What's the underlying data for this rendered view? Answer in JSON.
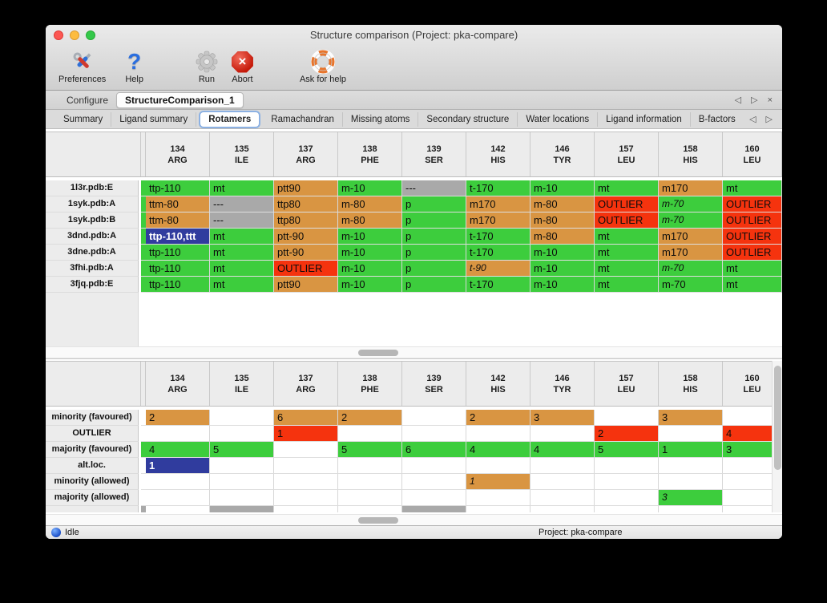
{
  "window": {
    "title": "Structure comparison (Project: pka-compare)"
  },
  "toolbar": {
    "items": [
      {
        "label": "Preferences",
        "icon": "tools-icon"
      },
      {
        "label": "Help",
        "icon": "question-mark-icon"
      },
      {
        "label": "Run",
        "icon": "gear-icon"
      },
      {
        "label": "Abort",
        "icon": "stop-icon"
      },
      {
        "label": "Ask for help",
        "icon": "life-ring-icon"
      }
    ]
  },
  "tabs": {
    "items": [
      {
        "label": "Configure",
        "active": false
      },
      {
        "label": "StructureComparison_1",
        "active": true
      }
    ]
  },
  "tab_controls": {
    "prev": "◁",
    "next": "▷",
    "close": "×"
  },
  "subtabs": {
    "active": "Rotamers",
    "items": [
      "Summary",
      "Ligand summary",
      "Rotamers",
      "Ramachandran",
      "Missing atoms",
      "Secondary structure",
      "Water locations",
      "Ligand information",
      "B-factors"
    ]
  },
  "colors": {
    "green": "#3dcd3d",
    "orange": "#d99542",
    "red": "#f5330e",
    "gray": "#a9a9a9",
    "blue": "#303c9e"
  },
  "columns": [
    {
      "num": "134",
      "res": "ARG"
    },
    {
      "num": "135",
      "res": "ILE"
    },
    {
      "num": "137",
      "res": "ARG"
    },
    {
      "num": "138",
      "res": "PHE"
    },
    {
      "num": "139",
      "res": "SER"
    },
    {
      "num": "142",
      "res": "HIS"
    },
    {
      "num": "146",
      "res": "TYR"
    },
    {
      "num": "157",
      "res": "LEU"
    },
    {
      "num": "158",
      "res": "HIS"
    },
    {
      "num": "160",
      "res": "LEU"
    }
  ],
  "top_table": {
    "rows": [
      {
        "label": "1l3r.pdb:E",
        "sliver": "green",
        "cells": [
          {
            "t": "ttp-110",
            "c": "green"
          },
          {
            "t": "mt",
            "c": "green"
          },
          {
            "t": "ptt90",
            "c": "orange"
          },
          {
            "t": "m-10",
            "c": "green"
          },
          {
            "t": "---",
            "c": "gray"
          },
          {
            "t": "t-170",
            "c": "green"
          },
          {
            "t": "m-10",
            "c": "green"
          },
          {
            "t": "mt",
            "c": "green"
          },
          {
            "t": "m170",
            "c": "orange"
          },
          {
            "t": "mt",
            "c": "green"
          }
        ]
      },
      {
        "label": "1syk.pdb:A",
        "sliver": "green",
        "cells": [
          {
            "t": "ttm-80",
            "c": "orange"
          },
          {
            "t": "---",
            "c": "gray"
          },
          {
            "t": "ttp80",
            "c": "orange"
          },
          {
            "t": "m-80",
            "c": "orange"
          },
          {
            "t": "p",
            "c": "green"
          },
          {
            "t": "m170",
            "c": "orange"
          },
          {
            "t": "m-80",
            "c": "orange"
          },
          {
            "t": "OUTLIER",
            "c": "red"
          },
          {
            "t": "m-70",
            "c": "green",
            "i": true
          },
          {
            "t": "OUTLIER",
            "c": "red"
          }
        ]
      },
      {
        "label": "1syk.pdb:B",
        "sliver": "green",
        "cells": [
          {
            "t": "ttm-80",
            "c": "orange"
          },
          {
            "t": "---",
            "c": "gray"
          },
          {
            "t": "ttp80",
            "c": "orange"
          },
          {
            "t": "m-80",
            "c": "orange"
          },
          {
            "t": "p",
            "c": "green"
          },
          {
            "t": "m170",
            "c": "orange"
          },
          {
            "t": "m-80",
            "c": "orange"
          },
          {
            "t": "OUTLIER",
            "c": "red"
          },
          {
            "t": "m-70",
            "c": "green",
            "i": true
          },
          {
            "t": "OUTLIER",
            "c": "red"
          }
        ]
      },
      {
        "label": "3dnd.pdb:A",
        "sliver": "green",
        "cells": [
          {
            "t": "ttp-110,ttt",
            "c": "blue",
            "sel": true
          },
          {
            "t": "mt",
            "c": "green"
          },
          {
            "t": "ptt-90",
            "c": "orange"
          },
          {
            "t": "m-10",
            "c": "green"
          },
          {
            "t": "p",
            "c": "green"
          },
          {
            "t": "t-170",
            "c": "green"
          },
          {
            "t": "m-80",
            "c": "orange"
          },
          {
            "t": "mt",
            "c": "green"
          },
          {
            "t": "m170",
            "c": "orange"
          },
          {
            "t": "OUTLIER",
            "c": "red"
          }
        ]
      },
      {
        "label": "3dne.pdb:A",
        "sliver": "green",
        "cells": [
          {
            "t": "ttp-110",
            "c": "green"
          },
          {
            "t": "mt",
            "c": "green"
          },
          {
            "t": "ptt-90",
            "c": "orange"
          },
          {
            "t": "m-10",
            "c": "green"
          },
          {
            "t": "p",
            "c": "green"
          },
          {
            "t": "t-170",
            "c": "green"
          },
          {
            "t": "m-10",
            "c": "green"
          },
          {
            "t": "mt",
            "c": "green"
          },
          {
            "t": "m170",
            "c": "orange"
          },
          {
            "t": "OUTLIER",
            "c": "red"
          }
        ]
      },
      {
        "label": "3fhi.pdb:A",
        "sliver": "green",
        "cells": [
          {
            "t": "ttp-110",
            "c": "green"
          },
          {
            "t": "mt",
            "c": "green"
          },
          {
            "t": "OUTLIER",
            "c": "red"
          },
          {
            "t": "m-10",
            "c": "green"
          },
          {
            "t": "p",
            "c": "green"
          },
          {
            "t": "t-90",
            "c": "orange",
            "i": true
          },
          {
            "t": "m-10",
            "c": "green"
          },
          {
            "t": "mt",
            "c": "green"
          },
          {
            "t": "m-70",
            "c": "green",
            "i": true
          },
          {
            "t": "mt",
            "c": "green"
          }
        ]
      },
      {
        "label": "3fjq.pdb:E",
        "sliver": "green",
        "cells": [
          {
            "t": "ttp-110",
            "c": "green"
          },
          {
            "t": "mt",
            "c": "green"
          },
          {
            "t": "ptt90",
            "c": "orange"
          },
          {
            "t": "m-10",
            "c": "green"
          },
          {
            "t": "p",
            "c": "green"
          },
          {
            "t": "t-170",
            "c": "green"
          },
          {
            "t": "m-10",
            "c": "green"
          },
          {
            "t": "mt",
            "c": "green"
          },
          {
            "t": "m-70",
            "c": "green"
          },
          {
            "t": "mt",
            "c": "green"
          }
        ]
      }
    ]
  },
  "bottom_table": {
    "rows": [
      {
        "label": "minority (favoured)",
        "sliver": "",
        "cells": [
          {
            "t": "2",
            "c": "orange"
          },
          {},
          {
            "t": "6",
            "c": "orange"
          },
          {
            "t": "2",
            "c": "orange"
          },
          {},
          {
            "t": "2",
            "c": "orange"
          },
          {
            "t": "3",
            "c": "orange"
          },
          {},
          {
            "t": "3",
            "c": "orange"
          },
          {}
        ]
      },
      {
        "label": "OUTLIER",
        "sliver": "",
        "cells": [
          {},
          {},
          {
            "t": "1",
            "c": "red"
          },
          {},
          {},
          {},
          {},
          {
            "t": "2",
            "c": "red"
          },
          {},
          {
            "t": "4",
            "c": "red"
          }
        ]
      },
      {
        "label": "majority (favoured)",
        "sliver": "green",
        "cells": [
          {
            "t": "4",
            "c": "green"
          },
          {
            "t": "5",
            "c": "green"
          },
          {},
          {
            "t": "5",
            "c": "green"
          },
          {
            "t": "6",
            "c": "green"
          },
          {
            "t": "4",
            "c": "green"
          },
          {
            "t": "4",
            "c": "green"
          },
          {
            "t": "5",
            "c": "green"
          },
          {
            "t": "1",
            "c": "green"
          },
          {
            "t": "3",
            "c": "green"
          }
        ]
      },
      {
        "label": "alt.loc.",
        "sliver": "",
        "cells": [
          {
            "t": "1",
            "c": "blue",
            "sel": true
          },
          {},
          {},
          {},
          {},
          {},
          {},
          {},
          {},
          {}
        ]
      },
      {
        "label": "minority (allowed)",
        "sliver": "",
        "cells": [
          {},
          {},
          {},
          {},
          {},
          {
            "t": "1",
            "c": "orange",
            "i": true
          },
          {},
          {},
          {},
          {}
        ]
      },
      {
        "label": "majority (allowed)",
        "sliver": "",
        "cells": [
          {},
          {},
          {},
          {},
          {},
          {},
          {},
          {},
          {
            "t": "3",
            "c": "green",
            "i": true
          },
          {}
        ]
      }
    ],
    "partial": {
      "label": "",
      "sliver": "gray",
      "cells": [
        "",
        "gray",
        "",
        "",
        "gray",
        "",
        "",
        "",
        "",
        ""
      ]
    }
  },
  "statusbar": {
    "status": "Idle",
    "project": "Project: pka-compare"
  }
}
